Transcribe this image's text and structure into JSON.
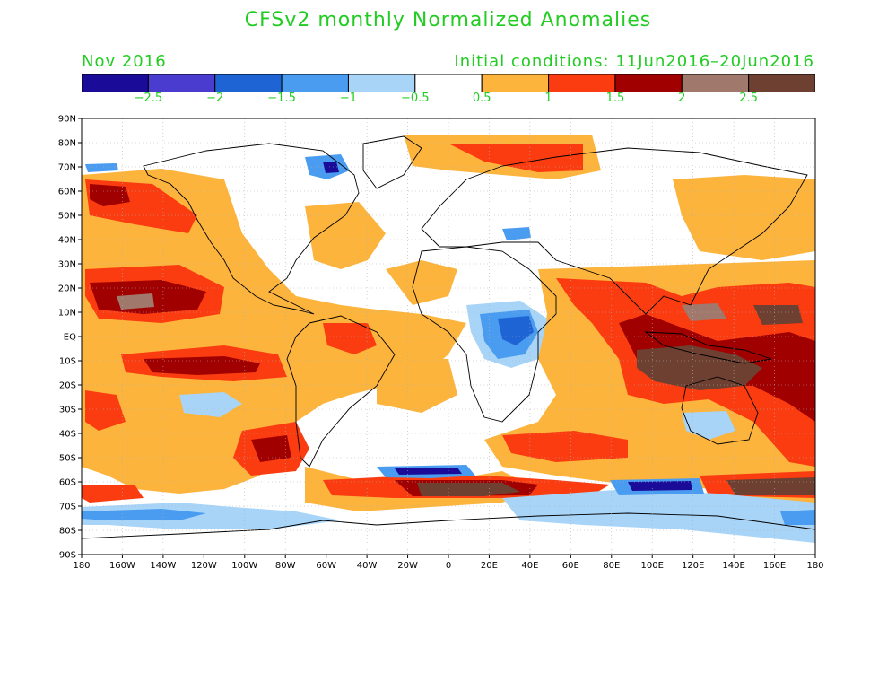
{
  "title": "CFSv2 monthly Normalized Anomalies",
  "left_subtitle": "Nov 2016",
  "right_subtitle": "Initial conditions: 11Jun2016–20Jun2016",
  "colorbar": {
    "colors": [
      "#1a0c99",
      "#4a3ccf",
      "#1e64d4",
      "#4a9cf0",
      "#a8d4f8",
      "#ffffff",
      "#fcb43c",
      "#fa3c10",
      "#a00000",
      "#a0786c",
      "#6e4032"
    ],
    "labels": [
      "−2.5",
      "−2",
      "−1.5",
      "−1",
      "−0.5",
      "0.5",
      "1",
      "1.5",
      "2",
      "2.5"
    ]
  },
  "lat_labels": [
    "90N",
    "80N",
    "70N",
    "60N",
    "50N",
    "40N",
    "30N",
    "20N",
    "10N",
    "EQ",
    "10S",
    "20S",
    "30S",
    "40S",
    "50S",
    "60S",
    "70S",
    "80S",
    "90S"
  ],
  "lon_labels": [
    "180",
    "160W",
    "140W",
    "120W",
    "100W",
    "80W",
    "60W",
    "40W",
    "20W",
    "0",
    "20E",
    "40E",
    "60E",
    "80E",
    "100E",
    "120E",
    "140E",
    "160E",
    "180"
  ]
}
